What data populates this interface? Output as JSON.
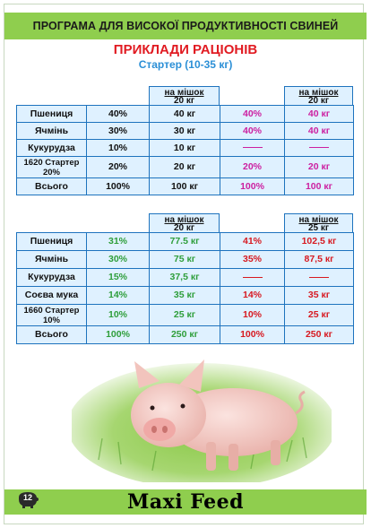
{
  "header": {
    "banner": "ПРОГРАМА ДЛЯ ВИСОКОЇ ПРОДУКТИВНОСТІ СВИНЕЙ"
  },
  "title": "ПРИКЛАДИ РАЦІОНІВ",
  "subtitle": "Стартер (10-35 кг)",
  "table1": {
    "head_left": {
      "line1": "на мішок",
      "line2": "20 кг"
    },
    "head_right": {
      "line1": "на мішок",
      "line2": "20 кг"
    },
    "rows": [
      {
        "name": "Пшениця",
        "pct1": "40%",
        "kg1": "40 кг",
        "pct2": "40%",
        "kg2": "40 кг"
      },
      {
        "name": "Ячмінь",
        "pct1": "30%",
        "kg1": "30 кг",
        "pct2": "40%",
        "kg2": "40 кг"
      },
      {
        "name": "Кукурудза",
        "pct1": "10%",
        "kg1": "10 кг",
        "pct2": "",
        "kg2": ""
      },
      {
        "name": "1620 Стартер 20%",
        "pct1": "20%",
        "kg1": "20 кг",
        "pct2": "20%",
        "kg2": "20 кг"
      },
      {
        "name": "Всього",
        "pct1": "100%",
        "kg1": "100 кг",
        "pct2": "100%",
        "kg2": "100 кг"
      }
    ]
  },
  "table2": {
    "head_left": {
      "line1": "на мішок",
      "line2": "20 кг"
    },
    "head_right": {
      "line1": "на мішок",
      "line2": "25 кг"
    },
    "rows": [
      {
        "name": "Пшениця",
        "pct1": "31%",
        "kg1": "77.5 кг",
        "pct2": "41%",
        "kg2": "102,5 кг"
      },
      {
        "name": "Ячмінь",
        "pct1": "30%",
        "kg1": "75 кг",
        "pct2": "35%",
        "kg2": "87,5 кг"
      },
      {
        "name": "Кукурудза",
        "pct1": "15%",
        "kg1": "37,5 кг",
        "pct2": "",
        "kg2": ""
      },
      {
        "name": "Соєва мука",
        "pct1": "14%",
        "kg1": "35 кг",
        "pct2": "14%",
        "kg2": "35 кг"
      },
      {
        "name": "1660 Стартер 10%",
        "pct1": "10%",
        "kg1": "25 кг",
        "pct2": "10%",
        "kg2": "25 кг"
      },
      {
        "name": "Всього",
        "pct1": "100%",
        "kg1": "250 кг",
        "pct2": "100%",
        "kg2": "250 кг"
      }
    ]
  },
  "footer": {
    "page_number": "12",
    "brand": "Maxi Feed"
  },
  "colors": {
    "banner": "#8fce4e",
    "title": "#e11b22",
    "subtitle": "#2b8fd6",
    "cell_bg": "#dff1ff",
    "border": "#1e73be",
    "green": "#2e9e3a",
    "red": "#d71920",
    "magenta": "#cc1fa0"
  },
  "image": {
    "subject": "piglet-on-grass"
  }
}
